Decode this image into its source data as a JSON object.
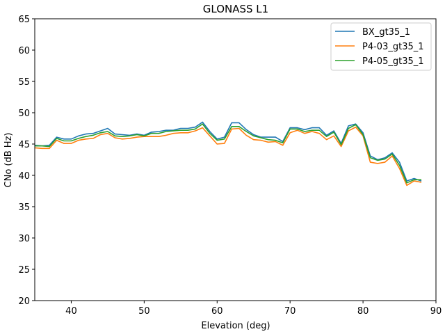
{
  "chart_data": {
    "type": "line",
    "title": "GLONASS L1",
    "xlabel": "Elevation (deg)",
    "ylabel": "CNo (dB Hz)",
    "xlim": [
      35,
      90
    ],
    "ylim": [
      20,
      65
    ],
    "xticks": [
      "40",
      "50",
      "60",
      "70",
      "80",
      "90"
    ],
    "yticks": [
      "20",
      "25",
      "30",
      "35",
      "40",
      "45",
      "50",
      "55",
      "60",
      "65"
    ],
    "grid": false,
    "legend_position": "top-right",
    "x": [
      35,
      36,
      37,
      38,
      39,
      40,
      41,
      42,
      43,
      44,
      45,
      46,
      47,
      48,
      49,
      50,
      51,
      52,
      53,
      54,
      55,
      56,
      57,
      58,
      59,
      60,
      61,
      62,
      63,
      64,
      65,
      66,
      67,
      68,
      69,
      70,
      71,
      72,
      73,
      74,
      75,
      76,
      77,
      78,
      79,
      80,
      81,
      82,
      83,
      84,
      85,
      86,
      87,
      88
    ],
    "series": [
      {
        "name": "BX_gt35_1",
        "color": "#1f77b4",
        "values": [
          44.8,
          44.7,
          44.8,
          46.1,
          45.8,
          45.8,
          46.3,
          46.6,
          46.7,
          47.1,
          47.5,
          46.6,
          46.5,
          46.4,
          46.6,
          46.4,
          46.9,
          47.0,
          47.2,
          47.2,
          47.5,
          47.5,
          47.7,
          48.5,
          47.0,
          45.8,
          46.1,
          48.4,
          48.4,
          47.3,
          46.5,
          46.1,
          46.1,
          46.1,
          45.4,
          47.6,
          47.6,
          47.3,
          47.6,
          47.6,
          46.4,
          47.1,
          45.1,
          47.9,
          48.2,
          46.8,
          43.1,
          42.5,
          42.8,
          43.6,
          42.1,
          39.1,
          39.5,
          39.1
        ]
      },
      {
        "name": "P4-03_gt35_1",
        "color": "#ff7f0e",
        "values": [
          44.4,
          44.3,
          44.3,
          45.6,
          45.1,
          45.1,
          45.6,
          45.8,
          45.9,
          46.5,
          46.7,
          46.0,
          45.8,
          45.9,
          46.1,
          46.2,
          46.2,
          46.2,
          46.4,
          46.7,
          46.8,
          46.8,
          47.1,
          47.6,
          46.3,
          45.0,
          45.1,
          47.4,
          47.5,
          46.4,
          45.7,
          45.6,
          45.3,
          45.4,
          44.8,
          46.8,
          47.2,
          46.7,
          47.0,
          46.7,
          45.7,
          46.3,
          44.6,
          47.1,
          47.7,
          46.3,
          42.1,
          41.9,
          42.1,
          43.1,
          41.1,
          38.4,
          39.1,
          38.9
        ]
      },
      {
        "name": "P4-05_gt35_1",
        "color": "#2ca02c",
        "values": [
          44.7,
          44.7,
          44.6,
          45.9,
          45.5,
          45.5,
          45.9,
          46.2,
          46.4,
          46.8,
          47.0,
          46.3,
          46.2,
          46.3,
          46.5,
          46.3,
          46.7,
          46.7,
          47.0,
          47.1,
          47.2,
          47.2,
          47.4,
          48.2,
          46.7,
          45.6,
          45.8,
          47.8,
          47.8,
          47.0,
          46.3,
          46.0,
          45.7,
          45.6,
          45.2,
          47.4,
          47.4,
          47.0,
          47.2,
          47.2,
          46.2,
          46.9,
          44.9,
          47.5,
          48.1,
          46.5,
          42.8,
          42.4,
          42.6,
          43.4,
          41.6,
          38.8,
          39.3,
          39.3
        ]
      }
    ]
  }
}
